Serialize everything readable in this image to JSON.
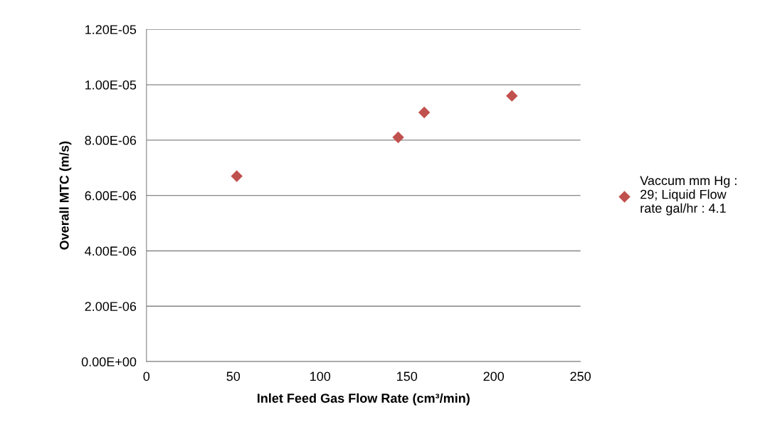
{
  "chart_data": {
    "type": "scatter",
    "xlabel": "Inlet Feed Gas Flow Rate (cm³/min)",
    "ylabel": "Overall MTC (m/s)",
    "x": [
      52,
      145,
      160,
      210.5
    ],
    "series": [
      {
        "name": "Vaccum mm Hg : 29; Liquid Flow rate gal/hr : 4.1",
        "color": "#c0504d",
        "values": [
          6.7e-06,
          8.1e-06,
          9e-06,
          9.6e-06
        ]
      }
    ],
    "xlim": [
      0,
      250
    ],
    "xticks": [
      0,
      50,
      100,
      150,
      200,
      250
    ],
    "ylim": [
      0,
      1.2e-05
    ],
    "yticks": [
      {
        "value": 0,
        "label": "0.00E+00"
      },
      {
        "value": 2e-06,
        "label": "2.00E-06"
      },
      {
        "value": 4e-06,
        "label": "4.00E-06"
      },
      {
        "value": 6e-06,
        "label": "6.00E-06"
      },
      {
        "value": 8e-06,
        "label": "8.00E-06"
      },
      {
        "value": 1e-05,
        "label": "1.00E-05"
      },
      {
        "value": 1.2e-05,
        "label": "1.20E-05"
      }
    ],
    "grid": "y",
    "legend": "right",
    "marker": "diamond"
  }
}
